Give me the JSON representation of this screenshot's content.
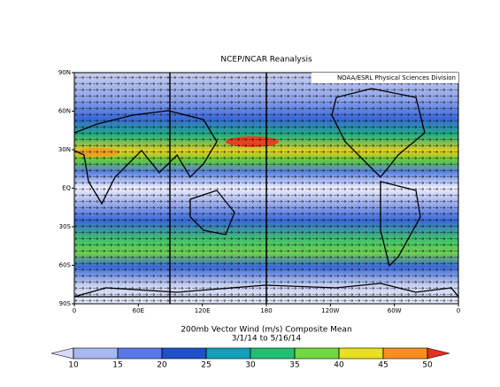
{
  "header": {
    "title": "NCEP/NCAR Reanalysis",
    "credit": "NOAA/ESRL Physical Sciences Division"
  },
  "map": {
    "lat_labels": [
      "90N",
      "60N",
      "30N",
      "EQ",
      "30S",
      "60S",
      "90S"
    ],
    "lon_labels": [
      "0",
      "60E",
      "120E",
      "180",
      "120W",
      "60W",
      "0"
    ]
  },
  "caption": {
    "line1": "200mb Vector Wind (m/s) Composite Mean",
    "line2": "3/1/14  to 5/16/14"
  },
  "colorbar": {
    "ticks": [
      10,
      15,
      20,
      25,
      30,
      35,
      40,
      45,
      50
    ],
    "colors": [
      "#d8d8f8",
      "#a8b8f0",
      "#5a78e8",
      "#2050c8",
      "#10a0b8",
      "#20c070",
      "#70d840",
      "#e8e020",
      "#f89020",
      "#e83020"
    ]
  }
}
